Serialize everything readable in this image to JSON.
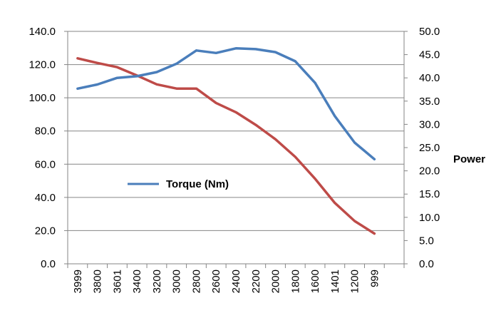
{
  "chart_data": {
    "type": "line",
    "categories": [
      "3999",
      "3800",
      "3601",
      "3400",
      "3200",
      "3000",
      "2800",
      "2600",
      "2400",
      "2200",
      "2000",
      "1800",
      "1600",
      "1401",
      "1200",
      "999"
    ],
    "series": [
      {
        "name": "Torque (Nm)",
        "axis": "left",
        "color": "#4A7EBB",
        "values": [
          105.5,
          108.0,
          112.0,
          113.0,
          115.5,
          120.5,
          128.5,
          127.0,
          129.8,
          129.3,
          127.5,
          122.0,
          109.0,
          89.0,
          73.0,
          63.0
        ]
      },
      {
        "axis": "right",
        "color": "#BE4B48",
        "values": [
          44.2,
          43.2,
          42.3,
          40.5,
          38.6,
          37.7,
          37.7,
          34.6,
          32.6,
          29.9,
          26.8,
          23.0,
          18.3,
          13.1,
          9.2,
          6.5
        ]
      }
    ],
    "y_left": {
      "min": 0,
      "max": 140,
      "step": 20,
      "tick_labels": [
        "0.0",
        "20.0",
        "40.0",
        "60.0",
        "80.0",
        "100.0",
        "120.0",
        "140.0"
      ]
    },
    "y_right": {
      "min": 0,
      "max": 50,
      "step": 5,
      "tick_labels": [
        "0.0",
        "5.0",
        "10.0",
        "15.0",
        "20.0",
        "25.0",
        "30.0",
        "35.0",
        "40.0",
        "45.0",
        "50.0"
      ],
      "label": "Power"
    },
    "grid": true,
    "legend": {
      "position": "center-left",
      "label": "Torque (Nm)"
    }
  }
}
